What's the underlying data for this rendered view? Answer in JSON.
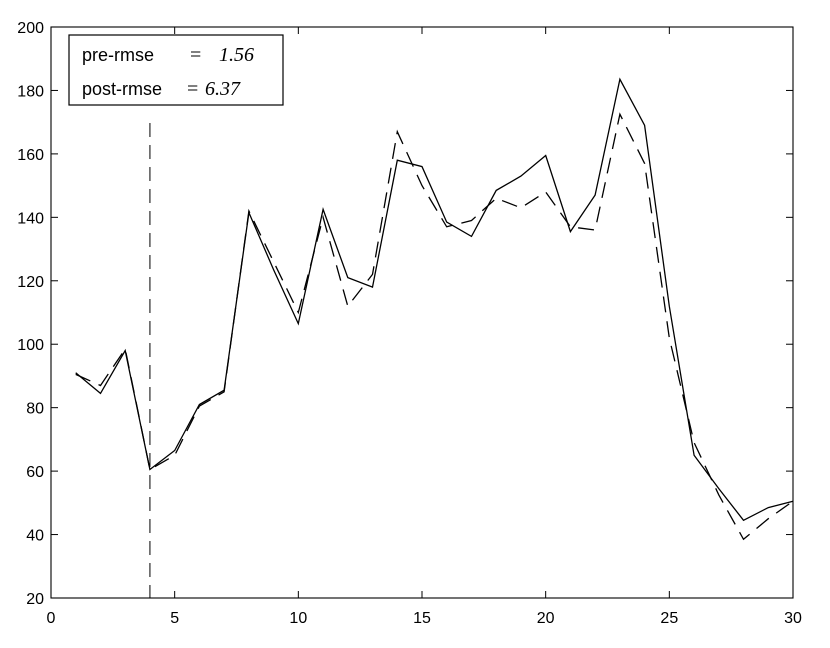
{
  "chart_data": {
    "type": "line",
    "xlim": [
      0,
      30
    ],
    "ylim": [
      20,
      200
    ],
    "xticks": [
      0,
      5,
      10,
      15,
      20,
      25,
      30
    ],
    "yticks": [
      20,
      40,
      60,
      80,
      100,
      120,
      140,
      160,
      180,
      200
    ],
    "grid": false,
    "legend_position": "top-left",
    "legend": [
      {
        "label": "pre-rmse",
        "value": "1.56"
      },
      {
        "label": "post-rmse",
        "value": "6.37"
      }
    ],
    "reference_line": {
      "x": 4,
      "style": "dashed"
    },
    "series": [
      {
        "style": "solid",
        "x": [
          1,
          2,
          3,
          4,
          5,
          6,
          7,
          8,
          9,
          10,
          11,
          12,
          13,
          14,
          15,
          16,
          17,
          18,
          19,
          20,
          21,
          22,
          23,
          24,
          25,
          26,
          27,
          28,
          29,
          30
        ],
        "values": [
          91,
          84.5,
          98,
          60.5,
          66.5,
          81,
          85.5,
          141.5,
          123.5,
          106.5,
          142.5,
          121,
          118,
          158,
          156,
          138.5,
          134,
          148.5,
          153,
          159.5,
          135.5,
          147,
          183.5,
          169,
          112,
          65,
          54.5,
          44.5,
          48.5,
          50.5
        ]
      },
      {
        "style": "dashed",
        "x": [
          1,
          2,
          3,
          4,
          5,
          6,
          7,
          8,
          9,
          10,
          11,
          12,
          13,
          14,
          15,
          16,
          17,
          18,
          19,
          20,
          21,
          22,
          23,
          24,
          25,
          26,
          27,
          28,
          29,
          30
        ],
        "values": [
          90.5,
          87,
          98.5,
          60.5,
          65,
          80.5,
          85,
          142,
          126,
          110,
          140,
          112,
          122,
          167,
          150,
          137,
          139,
          146,
          143,
          148,
          137,
          136,
          172.5,
          157,
          102,
          69,
          52.5,
          38.5,
          45,
          50.5
        ]
      }
    ]
  }
}
